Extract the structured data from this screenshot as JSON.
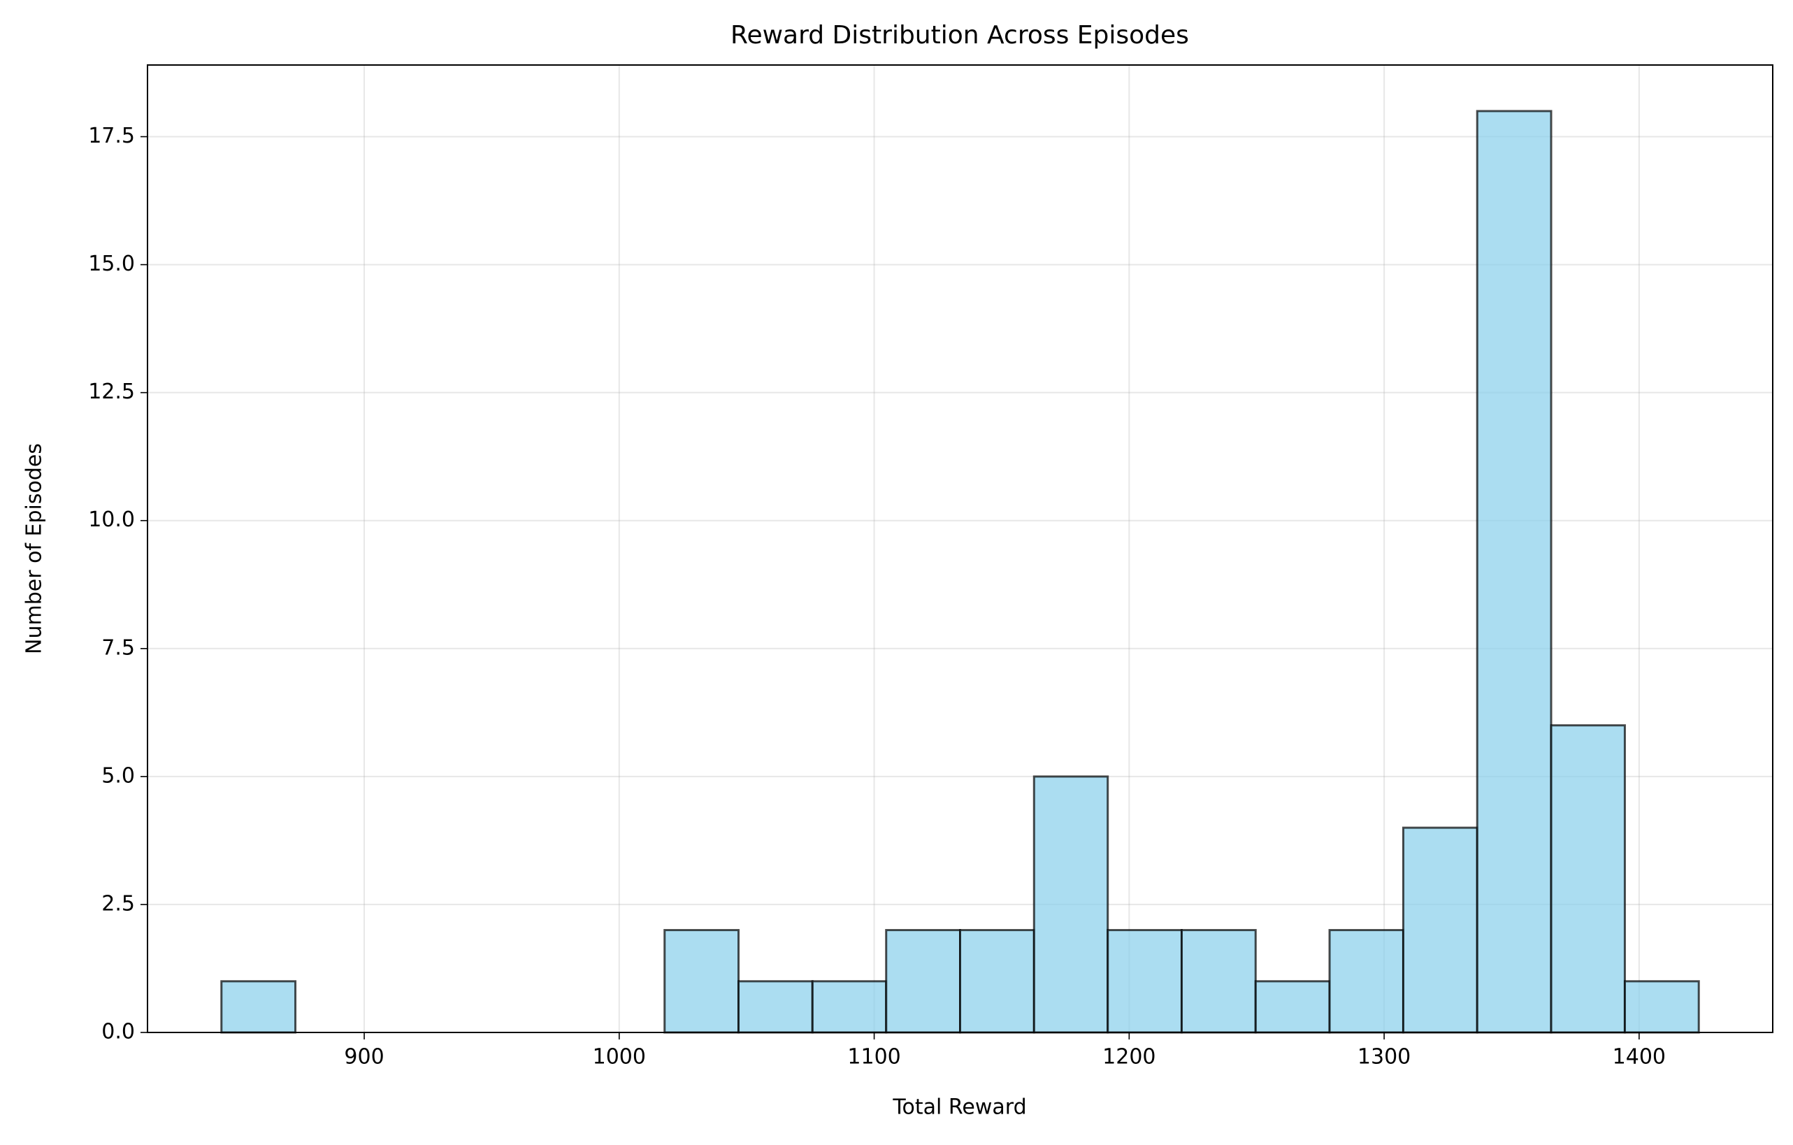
{
  "chart_data": {
    "type": "histogram",
    "title": "Reward Distribution Across Episodes",
    "xlabel": "Total Reward",
    "ylabel": "Number of Episodes",
    "bins": [
      844.0,
      873.0,
      901.9,
      930.9,
      959.9,
      988.9,
      1017.8,
      1046.8,
      1075.8,
      1104.7,
      1133.7,
      1162.7,
      1191.6,
      1220.6,
      1249.6,
      1278.6,
      1307.5,
      1336.5,
      1365.5,
      1394.4,
      1423.4
    ],
    "values": [
      1,
      0,
      0,
      0,
      0,
      0,
      2,
      1,
      1,
      2,
      2,
      5,
      2,
      2,
      1,
      2,
      4,
      18,
      6,
      1
    ],
    "color": "#87ceeb",
    "edgecolor": "#000000",
    "xlim": [
      815.0,
      1452.4
    ],
    "ylim": [
      0,
      18.9
    ],
    "xticks": [
      900,
      1000,
      1100,
      1200,
      1300,
      1400
    ],
    "yticks": [
      {
        "value": 0,
        "label": "0.0"
      },
      2.5,
      {
        "value": 5,
        "label": "5.0"
      },
      7.5,
      {
        "value": 10,
        "label": "10.0"
      },
      12.5,
      {
        "value": 15,
        "label": "15.0"
      },
      17.5
    ],
    "grid": true
  }
}
